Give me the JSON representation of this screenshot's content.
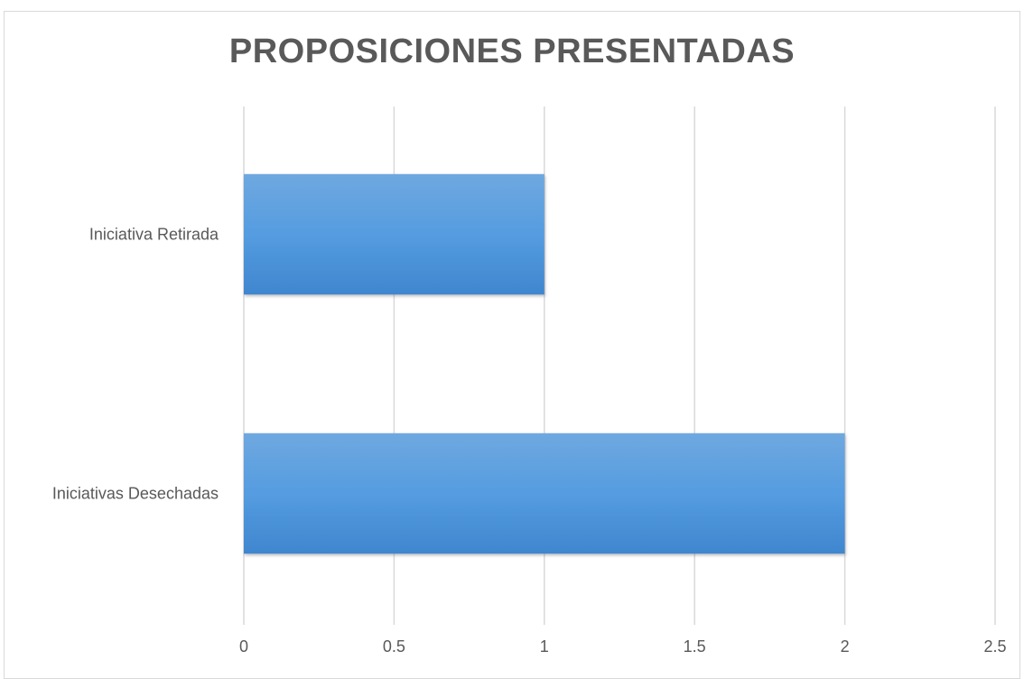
{
  "chart_data": {
    "type": "bar",
    "orientation": "horizontal",
    "title": "PROPOSICIONES PRESENTADAS",
    "categories": [
      "Iniciativa Retirada",
      "Iniciativas Desechadas"
    ],
    "values": [
      1,
      2
    ],
    "xlim": [
      0,
      2.5
    ],
    "x_ticks": [
      0,
      0.5,
      1,
      1.5,
      2,
      2.5
    ],
    "x_tick_labels": [
      "0",
      "0.5",
      "1",
      "1.5",
      "2",
      "2.5"
    ],
    "grid": "vertical",
    "legend": "none",
    "bar_color": "#4a90d6",
    "bar_color_light": "#6fa8e0",
    "gridline_color": "#d9d9d9"
  }
}
